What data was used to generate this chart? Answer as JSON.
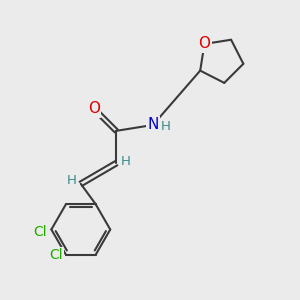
{
  "bg_color": "#ebebeb",
  "bond_color": "#3a3a3a",
  "bond_width": 1.5,
  "atom_colors": {
    "O": "#dd0000",
    "N": "#0000cc",
    "Cl": "#22aa00",
    "H": "#3a8a8a"
  },
  "font_size_main": 11,
  "font_size_h": 9.5,
  "font_size_cl": 10
}
